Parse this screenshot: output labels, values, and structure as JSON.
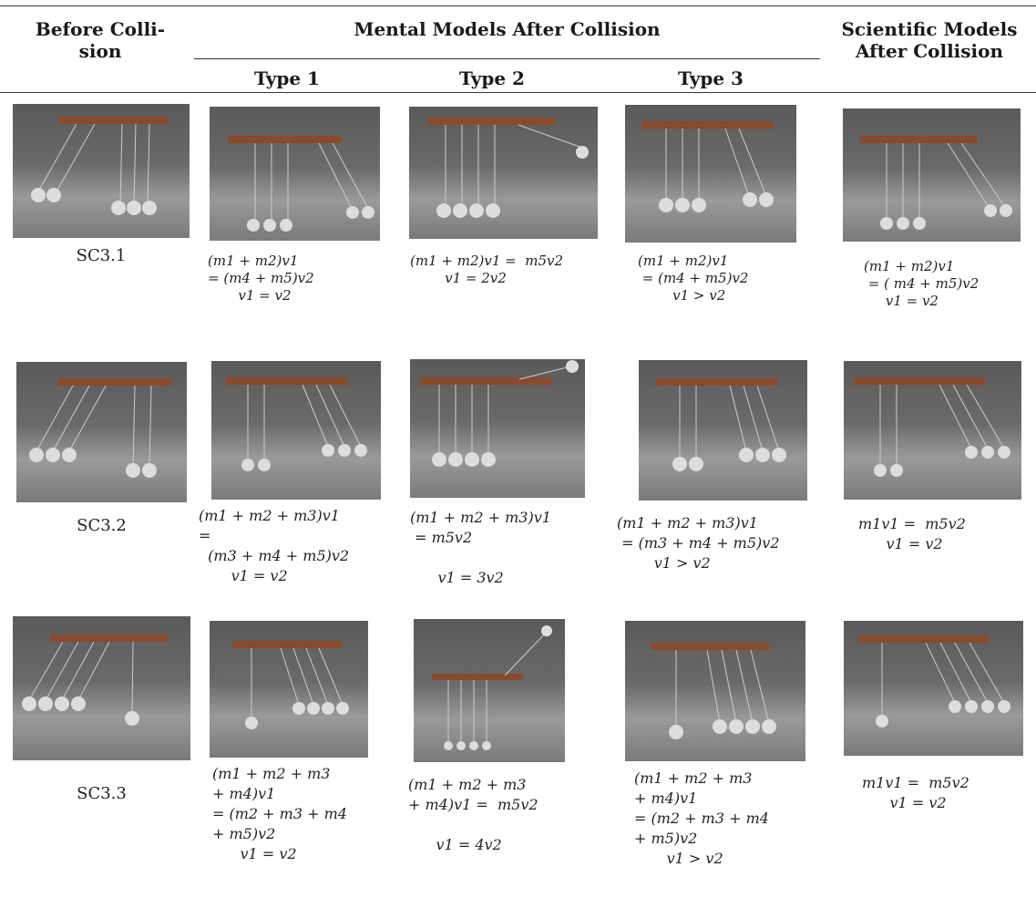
{
  "header": {
    "before": "Before Colli-\nsion",
    "mental": "Mental Models After Collision",
    "type1": "Type 1",
    "type2": "Type 2",
    "type3": "Type 3",
    "scientific": "Scientific Models\nAfter Collision"
  },
  "rows": [
    {
      "label": "SC3.1",
      "type1_eq": "(m1 + m2)v1\n= (m4 + m5)v2\n       v1 = v2",
      "type2_eq": "(m1 + m2)v1 =  m5v2\n        v1 = 2v2",
      "type3_eq": "(m1 + m2)v1\n = (m4 + m5)v2\n        v1 > v2",
      "sci_eq": "(m1 + m2)v1\n = ( m4 + m5)v2\n     v1 = v2"
    },
    {
      "label": "SC3.2",
      "type1_eq": "(m1 + m2 + m3)v1\n=\n  (m3 + m4 + m5)v2\n       v1 = v2",
      "type2_eq": "(m1 + m2 + m3)v1\n = m5v2\n\n      v1 = 3v2",
      "type3_eq": "(m1 + m2 + m3)v1\n = (m3 + m4 + m5)v2\n        v1 > v2",
      "sci_eq": "m1v1 =  m5v2\n      v1 = v2"
    },
    {
      "label": "SC3.3",
      "type1_eq": "(m1 + m2 + m3\n+ m4)v1\n= (m2 + m3 + m4\n+ m5)v2\n      v1 = v2",
      "type2_eq": "(m1 + m2 + m3\n+ m4)v1 =  m5v2\n\n      v1 = 4v2",
      "type3_eq": "(m1 + m2 + m3\n+ m4)v1\n= (m2 + m3 + m4\n+ m5)v2\n       v1 > v2",
      "sci_eq": "m1v1 =  m5v2\n      v1 = v2"
    }
  ]
}
